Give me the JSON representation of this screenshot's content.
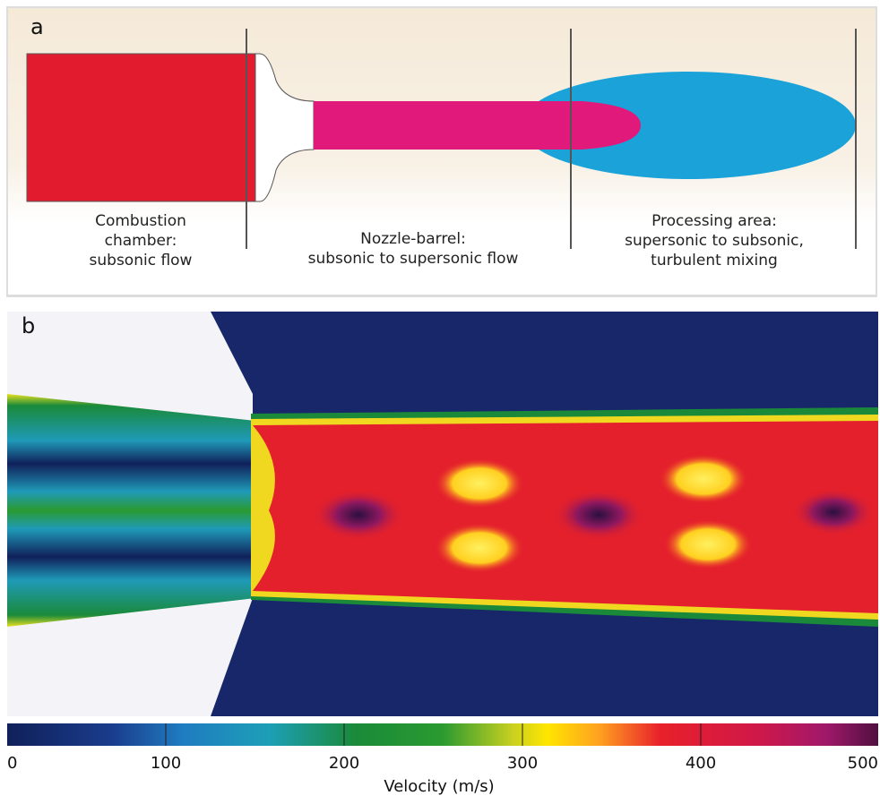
{
  "panel_a": {
    "label": "a",
    "regions": [
      {
        "lines": [
          "Combustion",
          "chamber:",
          "subsonic flow"
        ]
      },
      {
        "lines": [
          "Nozzle-barrel:",
          "subsonic to supersonic flow"
        ]
      },
      {
        "lines": [
          "Processing area:",
          "supersonic to subsonic,",
          "turbulent mixing"
        ]
      }
    ]
  },
  "panel_b": {
    "label": "b"
  },
  "colorbar": {
    "label": "Velocity (m/s)",
    "range": [
      0,
      500
    ],
    "ticks": [
      0,
      100,
      200,
      300,
      400,
      500
    ]
  }
}
